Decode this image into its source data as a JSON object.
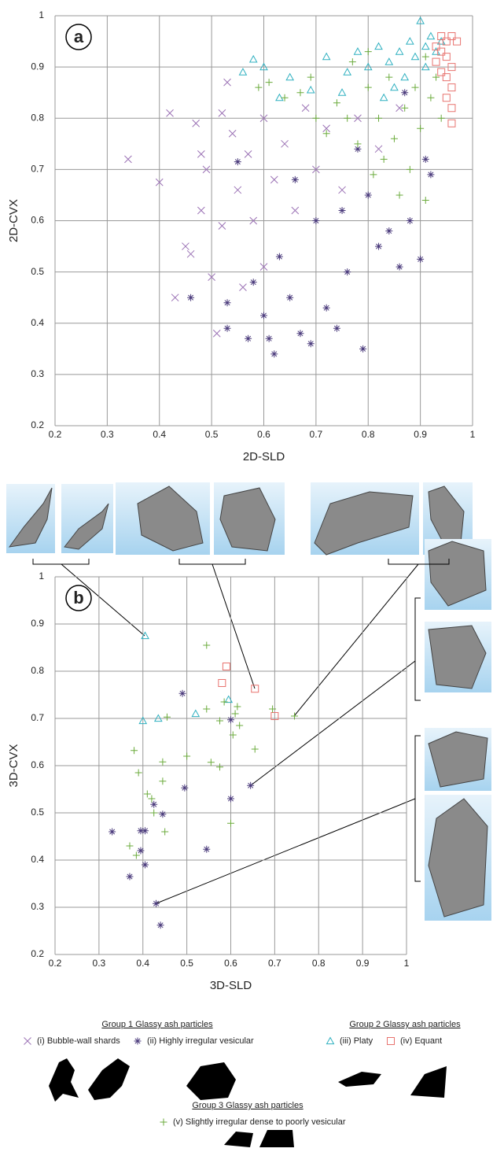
{
  "chart_data": [
    {
      "type": "scatter",
      "label": "a",
      "xlabel": "2D-SLD",
      "ylabel": "2D-CVX",
      "xlim": [
        0.2,
        1
      ],
      "ylim": [
        0.2,
        1
      ],
      "xticks": [
        0.2,
        0.3,
        0.4,
        0.5,
        0.6,
        0.7,
        0.8,
        0.9,
        1
      ],
      "yticks": [
        0.2,
        0.3,
        0.4,
        0.5,
        0.6,
        0.7,
        0.8,
        0.9,
        1
      ],
      "grid": true,
      "series": [
        {
          "name": "(i) Bubble-wall shards",
          "marker": "x",
          "color": "#9b72b5",
          "x": [
            0.34,
            0.4,
            0.42,
            0.43,
            0.45,
            0.46,
            0.47,
            0.48,
            0.49,
            0.5,
            0.51,
            0.52,
            0.53,
            0.54,
            0.55,
            0.57,
            0.58,
            0.6,
            0.62,
            0.64,
            0.66,
            0.68,
            0.7,
            0.72,
            0.75,
            0.78,
            0.82,
            0.86,
            0.6,
            0.56,
            0.48,
            0.52
          ],
          "y": [
            0.72,
            0.675,
            0.81,
            0.45,
            0.55,
            0.535,
            0.79,
            0.73,
            0.7,
            0.49,
            0.38,
            0.81,
            0.87,
            0.77,
            0.66,
            0.73,
            0.6,
            0.8,
            0.68,
            0.75,
            0.62,
            0.82,
            0.7,
            0.78,
            0.66,
            0.8,
            0.74,
            0.82,
            0.51,
            0.47,
            0.62,
            0.59
          ]
        },
        {
          "name": "(ii) Highly irregular vesicular",
          "marker": "asterisk",
          "color": "#4b3b7c",
          "x": [
            0.46,
            0.53,
            0.53,
            0.55,
            0.57,
            0.58,
            0.6,
            0.61,
            0.62,
            0.63,
            0.65,
            0.67,
            0.69,
            0.7,
            0.72,
            0.74,
            0.76,
            0.79,
            0.8,
            0.82,
            0.84,
            0.86,
            0.88,
            0.9,
            0.91,
            0.92,
            0.66,
            0.75,
            0.78,
            0.87
          ],
          "y": [
            0.45,
            0.44,
            0.39,
            0.715,
            0.37,
            0.48,
            0.415,
            0.37,
            0.34,
            0.53,
            0.45,
            0.38,
            0.36,
            0.6,
            0.43,
            0.39,
            0.5,
            0.35,
            0.65,
            0.55,
            0.58,
            0.51,
            0.6,
            0.525,
            0.72,
            0.69,
            0.68,
            0.62,
            0.74,
            0.85
          ]
        },
        {
          "name": "(iii) Platy",
          "marker": "triangle",
          "color": "#2fb0c0",
          "x": [
            0.56,
            0.58,
            0.6,
            0.63,
            0.65,
            0.69,
            0.72,
            0.75,
            0.78,
            0.8,
            0.82,
            0.84,
            0.86,
            0.88,
            0.89,
            0.9,
            0.91,
            0.92,
            0.93,
            0.94,
            0.87,
            0.85,
            0.83,
            0.91,
            0.76
          ],
          "y": [
            0.89,
            0.915,
            0.9,
            0.84,
            0.88,
            0.855,
            0.92,
            0.85,
            0.93,
            0.9,
            0.94,
            0.91,
            0.93,
            0.95,
            0.92,
            0.99,
            0.94,
            0.96,
            0.93,
            0.95,
            0.88,
            0.86,
            0.84,
            0.9,
            0.89
          ]
        },
        {
          "name": "(iv) Equant",
          "marker": "square",
          "color": "#e8736f",
          "x": [
            0.93,
            0.94,
            0.95,
            0.96,
            0.95,
            0.96,
            0.95,
            0.96,
            0.95,
            0.96,
            0.94,
            0.93,
            0.97,
            0.94,
            0.96
          ],
          "y": [
            0.94,
            0.96,
            0.95,
            0.96,
            0.92,
            0.9,
            0.88,
            0.86,
            0.84,
            0.79,
            0.89,
            0.91,
            0.95,
            0.93,
            0.82
          ]
        },
        {
          "name": "(v) Slightly irregular dense to poorly vesicular",
          "marker": "plus",
          "color": "#6bab3c",
          "x": [
            0.59,
            0.61,
            0.64,
            0.67,
            0.69,
            0.72,
            0.74,
            0.76,
            0.78,
            0.8,
            0.81,
            0.82,
            0.83,
            0.84,
            0.85,
            0.86,
            0.87,
            0.88,
            0.89,
            0.9,
            0.91,
            0.92,
            0.93,
            0.94,
            0.91,
            0.8,
            0.7,
            0.77
          ],
          "y": [
            0.86,
            0.87,
            0.84,
            0.85,
            0.88,
            0.77,
            0.83,
            0.8,
            0.75,
            0.86,
            0.69,
            0.8,
            0.72,
            0.88,
            0.76,
            0.65,
            0.82,
            0.7,
            0.86,
            0.78,
            0.64,
            0.84,
            0.88,
            0.8,
            0.92,
            0.93,
            0.8,
            0.91
          ]
        }
      ]
    },
    {
      "type": "scatter",
      "label": "b",
      "xlabel": "3D-SLD",
      "ylabel": "3D-CVX",
      "xlim": [
        0.2,
        1
      ],
      "ylim": [
        0.2,
        1
      ],
      "xticks": [
        0.2,
        0.3,
        0.4,
        0.5,
        0.6,
        0.7,
        0.8,
        0.9,
        1
      ],
      "yticks": [
        0.2,
        0.3,
        0.4,
        0.5,
        0.6,
        0.7,
        0.8,
        0.9,
        1
      ],
      "grid": true,
      "series": [
        {
          "marker": "asterisk",
          "color": "#4b3b7c",
          "x": [
            0.49,
            0.6,
            0.645,
            0.495,
            0.6,
            0.545,
            0.33,
            0.395,
            0.405,
            0.395,
            0.405,
            0.37,
            0.445,
            0.425,
            0.43,
            0.44
          ],
          "y": [
            0.753,
            0.697,
            0.558,
            0.553,
            0.53,
            0.423,
            0.46,
            0.462,
            0.462,
            0.42,
            0.39,
            0.365,
            0.497,
            0.518,
            0.308,
            0.262
          ]
        },
        {
          "marker": "triangle",
          "color": "#2fb0c0",
          "x": [
            0.405,
            0.4,
            0.435,
            0.52,
            0.595
          ],
          "y": [
            0.875,
            0.695,
            0.7,
            0.71,
            0.74
          ]
        },
        {
          "marker": "square",
          "color": "#e8736f",
          "x": [
            0.59,
            0.58,
            0.655,
            0.7
          ],
          "y": [
            0.81,
            0.775,
            0.763,
            0.705
          ]
        },
        {
          "marker": "plus",
          "color": "#6bab3c",
          "x": [
            0.545,
            0.38,
            0.39,
            0.445,
            0.455,
            0.5,
            0.545,
            0.555,
            0.575,
            0.575,
            0.585,
            0.605,
            0.61,
            0.615,
            0.62,
            0.655,
            0.695,
            0.745,
            0.41,
            0.42,
            0.445,
            0.45,
            0.37,
            0.385,
            0.6,
            0.425
          ],
          "y": [
            0.855,
            0.632,
            0.585,
            0.608,
            0.703,
            0.62,
            0.72,
            0.607,
            0.695,
            0.597,
            0.735,
            0.665,
            0.71,
            0.725,
            0.685,
            0.635,
            0.72,
            0.705,
            0.54,
            0.53,
            0.567,
            0.46,
            0.43,
            0.41,
            0.478,
            0.5
          ]
        }
      ]
    }
  ],
  "legend": {
    "groups": [
      "Group 1 Glassy ash particles",
      "Group 2 Glassy ash particles",
      "Group 3 Glassy ash particles"
    ]
  }
}
